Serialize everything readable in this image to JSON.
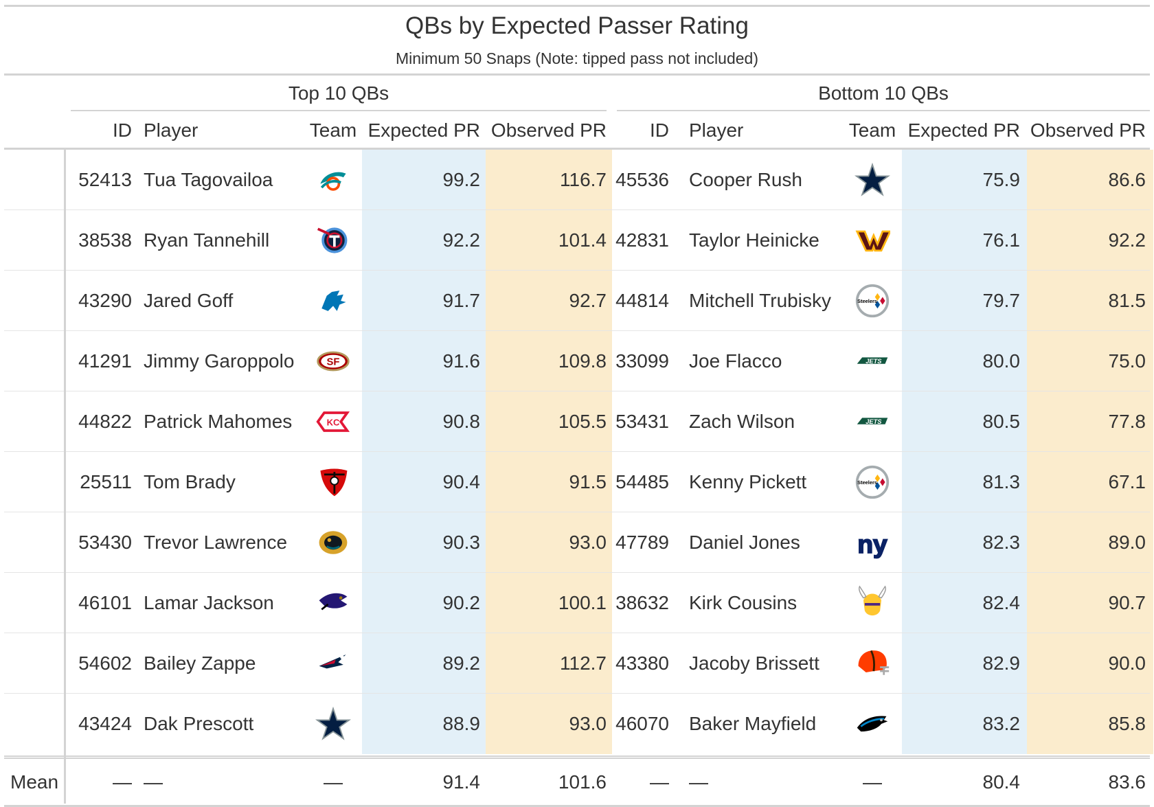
{
  "title": "QBs by Expected Passer Rating",
  "subtitle": "Minimum 50 Snaps (Note: tipped pass not included)",
  "spanners": {
    "top": "Top 10 QBs",
    "bottom": "Bottom 10 QBs"
  },
  "columns": {
    "id": "ID",
    "player": "Player",
    "team": "Team",
    "expected": "Expected PR",
    "observed": "Observed PR"
  },
  "colors": {
    "expected_bg": "#e3f0f8",
    "observed_bg": "#fbeccd",
    "rule": "#d3d3d3"
  },
  "chart_data": {
    "type": "table",
    "top": [
      {
        "id": "52413",
        "player": "Tua Tagovailoa",
        "team_icon": "dolphins-logo-icon",
        "expected": "99.2",
        "observed": "116.7"
      },
      {
        "id": "38538",
        "player": "Ryan Tannehill",
        "team_icon": "titans-logo-icon",
        "expected": "92.2",
        "observed": "101.4"
      },
      {
        "id": "43290",
        "player": "Jared Goff",
        "team_icon": "lions-logo-icon",
        "expected": "91.7",
        "observed": "92.7"
      },
      {
        "id": "41291",
        "player": "Jimmy Garoppolo",
        "team_icon": "49ers-logo-icon",
        "expected": "91.6",
        "observed": "109.8"
      },
      {
        "id": "44822",
        "player": "Patrick Mahomes",
        "team_icon": "chiefs-logo-icon",
        "expected": "90.8",
        "observed": "105.5"
      },
      {
        "id": "25511",
        "player": "Tom Brady",
        "team_icon": "buccaneers-logo-icon",
        "expected": "90.4",
        "observed": "91.5"
      },
      {
        "id": "53430",
        "player": "Trevor Lawrence",
        "team_icon": "jaguars-logo-icon",
        "expected": "90.3",
        "observed": "93.0"
      },
      {
        "id": "46101",
        "player": "Lamar Jackson",
        "team_icon": "ravens-logo-icon",
        "expected": "90.2",
        "observed": "100.1"
      },
      {
        "id": "54602",
        "player": "Bailey Zappe",
        "team_icon": "patriots-logo-icon",
        "expected": "89.2",
        "observed": "112.7"
      },
      {
        "id": "43424",
        "player": "Dak Prescott",
        "team_icon": "cowboys-logo-icon",
        "expected": "88.9",
        "observed": "93.0"
      }
    ],
    "bottom": [
      {
        "id": "45536",
        "player": "Cooper Rush",
        "team_icon": "cowboys-logo-icon",
        "expected": "75.9",
        "observed": "86.6"
      },
      {
        "id": "42831",
        "player": "Taylor Heinicke",
        "team_icon": "commanders-logo-icon",
        "expected": "76.1",
        "observed": "92.2"
      },
      {
        "id": "44814",
        "player": "Mitchell Trubisky",
        "team_icon": "steelers-logo-icon",
        "expected": "79.7",
        "observed": "81.5"
      },
      {
        "id": "33099",
        "player": "Joe Flacco",
        "team_icon": "jets-logo-icon",
        "expected": "80.0",
        "observed": "75.0"
      },
      {
        "id": "53431",
        "player": "Zach Wilson",
        "team_icon": "jets-logo-icon",
        "expected": "80.5",
        "observed": "77.8"
      },
      {
        "id": "54485",
        "player": "Kenny Pickett",
        "team_icon": "steelers-logo-icon",
        "expected": "81.3",
        "observed": "67.1"
      },
      {
        "id": "47789",
        "player": "Daniel Jones",
        "team_icon": "giants-logo-icon",
        "expected": "82.3",
        "observed": "89.0"
      },
      {
        "id": "38632",
        "player": "Kirk Cousins",
        "team_icon": "vikings-logo-icon",
        "expected": "82.4",
        "observed": "90.7"
      },
      {
        "id": "43380",
        "player": "Jacoby Brissett",
        "team_icon": "browns-logo-icon",
        "expected": "82.9",
        "observed": "90.0"
      },
      {
        "id": "46070",
        "player": "Baker Mayfield",
        "team_icon": "panthers-logo-icon",
        "expected": "83.2",
        "observed": "85.8"
      }
    ],
    "summary": {
      "label": "Mean",
      "top": {
        "id": "—",
        "player": "—",
        "team": "—",
        "expected": "91.4",
        "observed": "101.6"
      },
      "bottom": {
        "id": "—",
        "player": "—",
        "team": "—",
        "expected": "80.4",
        "observed": "83.6"
      }
    }
  }
}
